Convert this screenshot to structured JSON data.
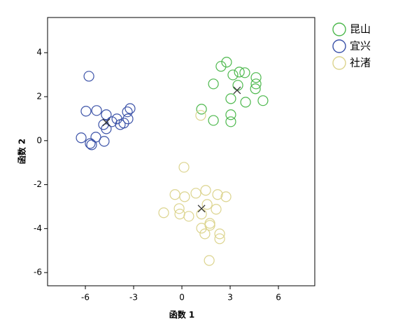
{
  "chart_data": {
    "type": "scatter",
    "x_label": "函数 1",
    "y_label": "函数 2",
    "xlim": [
      -8.35,
      8.26
    ],
    "ylim": [
      -6.6,
      5.6
    ],
    "xticks": [
      -6,
      -3,
      0,
      3,
      6
    ],
    "yticks": [
      -6,
      -4,
      -2,
      0,
      2,
      4
    ],
    "legend": "outside-top-right",
    "series": [
      {
        "name": "昆山",
        "color": "#4cb84c",
        "x": [
          2.78,
          2.43,
          3.57,
          3.91,
          3.17,
          1.96,
          4.61,
          4.61,
          4.57,
          3.48,
          3.04,
          3.96,
          5.04,
          3.04,
          3.04,
          1.96,
          1.22
        ],
        "y": [
          3.57,
          3.38,
          3.12,
          3.09,
          2.99,
          2.58,
          2.87,
          2.58,
          2.36,
          2.52,
          1.91,
          1.75,
          1.82,
          1.18,
          0.86,
          0.92,
          1.43
        ],
        "centroid": [
          3.43,
          2.29
        ]
      },
      {
        "name": "宜兴",
        "color": "#3b52a8",
        "x": [
          -5.78,
          -5.96,
          -5.3,
          -4.7,
          -4.04,
          -4.35,
          -3.61,
          -3.39,
          -3.22,
          -3.35,
          -3.83,
          -4.87,
          -4.7,
          -5.35,
          -6.26,
          -5.7,
          -5.61,
          -4.83
        ],
        "y": [
          2.93,
          1.34,
          1.37,
          1.18,
          0.99,
          0.86,
          0.8,
          1.31,
          1.46,
          0.99,
          0.73,
          0.73,
          0.54,
          0.16,
          0.13,
          -0.13,
          -0.19,
          -0.03
        ],
        "centroid": [
          -4.7,
          0.83
        ]
      },
      {
        "name": "社渚",
        "color": "#dcd48e",
        "x": [
          0.13,
          0.17,
          -0.43,
          0.87,
          1.48,
          2.22,
          2.74,
          1.57,
          2.13,
          -1.13,
          -0.17,
          0.43,
          1.22,
          1.74,
          -0.13,
          1.22,
          1.43,
          2.35,
          2.35,
          1.74,
          1.7,
          1.17
        ],
        "y": [
          -1.21,
          -2.55,
          -2.45,
          -2.39,
          -2.26,
          -2.45,
          -2.55,
          -2.9,
          -3.12,
          -3.28,
          -3.09,
          -3.44,
          -3.34,
          -3.76,
          -3.34,
          -3.98,
          -4.24,
          -4.24,
          -4.46,
          -3.85,
          -5.45,
          1.15
        ],
        "centroid": [
          1.22,
          -3.09
        ]
      }
    ]
  }
}
